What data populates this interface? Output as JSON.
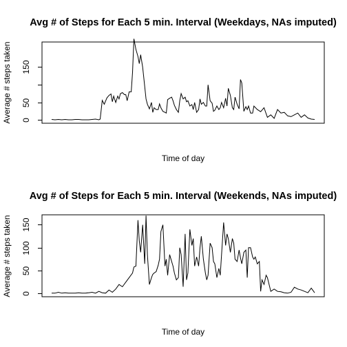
{
  "chart_data": [
    {
      "type": "line",
      "title": "Avg # of Steps for Each 5 min. Interval (Weekdays, NAs imputed)",
      "xlabel": "Time of day",
      "ylabel": "Average # steps taken",
      "ylim": [
        -5,
        235
      ],
      "y_ticks": [
        "0",
        "50",
        "150"
      ],
      "grid": false,
      "x_ticks_shown": false,
      "series": [
        {
          "x": [
            0,
            5,
            10,
            15,
            20,
            25,
            30,
            35,
            40,
            45,
            50,
            55,
            60,
            65,
            70,
            72,
            75,
            78,
            82,
            85,
            88,
            90,
            92,
            95,
            98,
            100,
            102,
            105,
            108,
            110,
            112,
            115,
            118,
            120,
            122,
            125,
            128,
            130,
            132,
            135,
            138,
            140,
            142,
            145,
            148,
            150,
            152,
            155,
            158,
            160,
            162,
            165,
            168,
            170,
            172,
            175,
            178,
            180,
            182,
            185,
            188,
            190,
            192,
            195,
            198,
            200,
            202,
            205,
            208,
            210,
            212,
            215,
            218,
            220,
            222,
            225,
            228,
            230,
            232,
            235,
            238,
            240,
            242,
            245,
            248,
            250,
            252,
            255,
            258,
            260,
            262,
            265,
            268,
            270,
            272,
            275,
            278,
            280,
            282,
            285,
            288,
            290,
            292,
            295,
            298,
            300,
            305,
            310,
            315,
            320,
            325,
            330,
            335,
            340,
            345,
            350,
            355,
            360,
            365,
            370,
            375,
            380,
            385,
            390
          ],
          "values": [
            2,
            1,
            2,
            1,
            2,
            1,
            1,
            2,
            2,
            1,
            1,
            1,
            2,
            3,
            1,
            3,
            56,
            45,
            63,
            70,
            74,
            52,
            68,
            50,
            68,
            60,
            75,
            78,
            72,
            72,
            55,
            80,
            80,
            135,
            230,
            200,
            180,
            160,
            185,
            150,
            95,
            60,
            45,
            32,
            50,
            22,
            35,
            30,
            30,
            46,
            35,
            25,
            22,
            20,
            58,
            62,
            65,
            55,
            42,
            30,
            22,
            55,
            75,
            60,
            65,
            52,
            55,
            40,
            44,
            30,
            50,
            22,
            30,
            60,
            45,
            50,
            40,
            40,
            100,
            55,
            48,
            25,
            28,
            40,
            30,
            35,
            50,
            35,
            62,
            40,
            90,
            70,
            35,
            30,
            65,
            45,
            32,
            115,
            105,
            25,
            38,
            30,
            40,
            20,
            20,
            40,
            30,
            24,
            35,
            8,
            15,
            5,
            30,
            20,
            22,
            12,
            10,
            15,
            20,
            8,
            15,
            6,
            3,
            2
          ]
        }
      ]
    },
    {
      "type": "line",
      "title": "Avg # of Steps for Each 5 min. Interval (Weekends, NAs imputed)",
      "xlabel": "Time of day",
      "ylabel": "Average # steps taken",
      "ylim": [
        -5,
        180
      ],
      "y_ticks": [
        "0",
        "50",
        "100",
        "150"
      ],
      "grid": false,
      "x_ticks_shown": false,
      "series": [
        {
          "x": [
            0,
            5,
            10,
            15,
            20,
            25,
            30,
            35,
            40,
            45,
            50,
            55,
            60,
            65,
            70,
            75,
            80,
            85,
            90,
            95,
            100,
            105,
            110,
            115,
            120,
            122,
            125,
            128,
            130,
            132,
            135,
            138,
            140,
            142,
            145,
            148,
            150,
            152,
            155,
            158,
            160,
            162,
            165,
            168,
            170,
            172,
            175,
            178,
            180,
            182,
            185,
            188,
            190,
            192,
            195,
            198,
            200,
            202,
            205,
            208,
            210,
            212,
            215,
            218,
            220,
            222,
            225,
            228,
            230,
            232,
            235,
            238,
            240,
            242,
            245,
            248,
            250,
            252,
            255,
            258,
            260,
            262,
            265,
            268,
            270,
            272,
            275,
            278,
            280,
            282,
            285,
            288,
            290,
            292,
            295,
            298,
            300,
            302,
            305,
            308,
            310,
            312,
            315,
            318,
            320,
            325,
            330,
            335,
            340,
            345,
            350,
            355,
            360,
            365,
            370,
            375,
            380,
            385,
            390
          ],
          "values": [
            1,
            1,
            3,
            1,
            2,
            1,
            1,
            1,
            2,
            1,
            1,
            2,
            3,
            1,
            5,
            2,
            1,
            8,
            3,
            10,
            20,
            15,
            25,
            35,
            45,
            58,
            60,
            160,
            115,
            90,
            150,
            65,
            170,
            85,
            20,
            35,
            42,
            45,
            48,
            62,
            75,
            135,
            150,
            60,
            75,
            40,
            85,
            70,
            60,
            45,
            30,
            35,
            100,
            85,
            15,
            130,
            30,
            45,
            140,
            105,
            120,
            60,
            80,
            60,
            100,
            125,
            75,
            45,
            30,
            40,
            110,
            100,
            70,
            65,
            35,
            55,
            40,
            85,
            155,
            105,
            130,
            120,
            90,
            120,
            110,
            75,
            70,
            95,
            78,
            65,
            90,
            95,
            35,
            100,
            100,
            80,
            75,
            80,
            65,
            70,
            5,
            30,
            20,
            40,
            35,
            5,
            10,
            5,
            4,
            2,
            1,
            3,
            14,
            10,
            8,
            5,
            2,
            12,
            2
          ]
        }
      ]
    }
  ]
}
